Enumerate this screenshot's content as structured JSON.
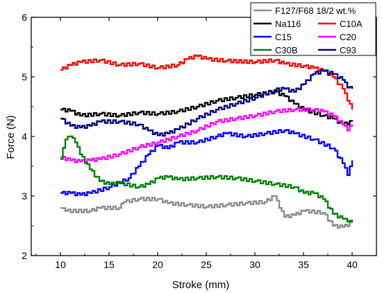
{
  "chart_data": {
    "type": "line",
    "xlabel": "Stroke (mm)",
    "ylabel": "Force (N)",
    "xlim": [
      7,
      42.5
    ],
    "ylim": [
      2,
      6
    ],
    "xticks": [
      10,
      15,
      20,
      25,
      30,
      35,
      40
    ],
    "yticks": [
      2,
      3,
      4,
      5,
      6
    ],
    "grid": false,
    "legend_position": "top-right",
    "series": [
      {
        "name": "F127/F68 18/2 wt.%",
        "color": "#8c8c8c",
        "points": [
          [
            10,
            2.8
          ],
          [
            10.5,
            2.75
          ],
          [
            13,
            2.75
          ],
          [
            14,
            2.8
          ],
          [
            16,
            2.8
          ],
          [
            16.5,
            2.9
          ],
          [
            18,
            2.95
          ],
          [
            20,
            2.95
          ],
          [
            21,
            2.88
          ],
          [
            23,
            2.85
          ],
          [
            25,
            2.82
          ],
          [
            27,
            2.85
          ],
          [
            29,
            2.88
          ],
          [
            31,
            2.9
          ],
          [
            32,
            3.0
          ],
          [
            32.5,
            2.8
          ],
          [
            33,
            2.65
          ],
          [
            34,
            2.68
          ],
          [
            35,
            2.75
          ],
          [
            37,
            2.72
          ],
          [
            38,
            2.5
          ],
          [
            39,
            2.48
          ],
          [
            40,
            2.55
          ]
        ]
      },
      {
        "name": "Na116",
        "color": "#000000",
        "points": [
          [
            10,
            4.45
          ],
          [
            11,
            4.43
          ],
          [
            12,
            4.35
          ],
          [
            14,
            4.38
          ],
          [
            16,
            4.35
          ],
          [
            18,
            4.4
          ],
          [
            20,
            4.38
          ],
          [
            22,
            4.42
          ],
          [
            24,
            4.5
          ],
          [
            26,
            4.6
          ],
          [
            28,
            4.65
          ],
          [
            30,
            4.7
          ],
          [
            32,
            4.75
          ],
          [
            33,
            4.68
          ],
          [
            34,
            4.55
          ],
          [
            35,
            4.45
          ],
          [
            37,
            4.35
          ],
          [
            38,
            4.3
          ],
          [
            39,
            4.2
          ],
          [
            40,
            4.25
          ]
        ]
      },
      {
        "name": "C10A",
        "color": "#ff0000",
        "points": [
          [
            10,
            5.12
          ],
          [
            11,
            5.2
          ],
          [
            12,
            5.25
          ],
          [
            14,
            5.28
          ],
          [
            16,
            5.2
          ],
          [
            18,
            5.22
          ],
          [
            20,
            5.15
          ],
          [
            22,
            5.2
          ],
          [
            23,
            5.3
          ],
          [
            24,
            5.35
          ],
          [
            25,
            5.3
          ],
          [
            27,
            5.27
          ],
          [
            30,
            5.25
          ],
          [
            32,
            5.28
          ],
          [
            33,
            5.22
          ],
          [
            35,
            5.18
          ],
          [
            36,
            5.15
          ],
          [
            37,
            5.1
          ],
          [
            38,
            5.0
          ],
          [
            39,
            4.8
          ],
          [
            39.5,
            4.6
          ],
          [
            40,
            4.45
          ]
        ]
      },
      {
        "name": "C15",
        "color": "#0000ff",
        "points": [
          [
            10,
            3.05
          ],
          [
            11,
            3.05
          ],
          [
            12,
            3.02
          ],
          [
            13,
            3.05
          ],
          [
            15,
            3.15
          ],
          [
            17,
            3.3
          ],
          [
            18,
            3.5
          ],
          [
            19,
            3.7
          ],
          [
            20,
            3.85
          ],
          [
            21,
            3.8
          ],
          [
            22,
            3.9
          ],
          [
            24,
            3.9
          ],
          [
            26,
            4.0
          ],
          [
            27,
            4.05
          ],
          [
            29,
            4.0
          ],
          [
            31,
            4.05
          ],
          [
            33,
            4.1
          ],
          [
            34,
            4.05
          ],
          [
            36,
            3.95
          ],
          [
            38,
            3.8
          ],
          [
            39,
            3.55
          ],
          [
            39.5,
            3.35
          ],
          [
            40,
            3.6
          ]
        ]
      },
      {
        "name": "C20",
        "color": "#ff00ff",
        "points": [
          [
            10,
            3.65
          ],
          [
            11,
            3.6
          ],
          [
            12,
            3.58
          ],
          [
            13,
            3.6
          ],
          [
            14,
            3.62
          ],
          [
            16,
            3.7
          ],
          [
            18,
            3.82
          ],
          [
            20,
            3.9
          ],
          [
            22,
            4.0
          ],
          [
            24,
            4.1
          ],
          [
            26,
            4.25
          ],
          [
            28,
            4.3
          ],
          [
            30,
            4.35
          ],
          [
            32,
            4.42
          ],
          [
            34,
            4.45
          ],
          [
            36,
            4.45
          ],
          [
            37,
            4.42
          ],
          [
            38,
            4.35
          ],
          [
            39,
            4.2
          ],
          [
            39.5,
            4.1
          ],
          [
            40,
            4.2
          ]
        ]
      },
      {
        "name": "C30B",
        "color": "#008000",
        "points": [
          [
            10,
            3.62
          ],
          [
            10.5,
            3.95
          ],
          [
            11,
            4.0
          ],
          [
            11.5,
            3.9
          ],
          [
            12,
            3.7
          ],
          [
            13,
            3.45
          ],
          [
            14,
            3.25
          ],
          [
            15,
            3.2
          ],
          [
            16,
            3.22
          ],
          [
            18,
            3.15
          ],
          [
            19,
            3.2
          ],
          [
            20,
            3.3
          ],
          [
            21,
            3.32
          ],
          [
            22,
            3.28
          ],
          [
            24,
            3.3
          ],
          [
            26,
            3.32
          ],
          [
            28,
            3.3
          ],
          [
            30,
            3.25
          ],
          [
            32,
            3.2
          ],
          [
            34,
            3.15
          ],
          [
            35,
            3.05
          ],
          [
            36,
            3.05
          ],
          [
            37,
            2.95
          ],
          [
            38,
            2.7
          ],
          [
            39,
            2.62
          ],
          [
            39.5,
            2.57
          ],
          [
            40,
            2.56
          ]
        ]
      },
      {
        "name": "C93",
        "color": "#000080",
        "points": [
          [
            10,
            4.3
          ],
          [
            11,
            4.18
          ],
          [
            12,
            4.15
          ],
          [
            13,
            4.18
          ],
          [
            14,
            4.25
          ],
          [
            16,
            4.25
          ],
          [
            18,
            4.2
          ],
          [
            19,
            4.1
          ],
          [
            20,
            4.02
          ],
          [
            21,
            4.05
          ],
          [
            22,
            4.12
          ],
          [
            24,
            4.3
          ],
          [
            26,
            4.45
          ],
          [
            28,
            4.55
          ],
          [
            30,
            4.65
          ],
          [
            32,
            4.78
          ],
          [
            33,
            4.8
          ],
          [
            34,
            4.75
          ],
          [
            35,
            4.88
          ],
          [
            36,
            5.05
          ],
          [
            37,
            5.1
          ],
          [
            38,
            5.05
          ],
          [
            39,
            4.95
          ],
          [
            39.5,
            4.82
          ],
          [
            40,
            4.8
          ]
        ]
      }
    ]
  }
}
